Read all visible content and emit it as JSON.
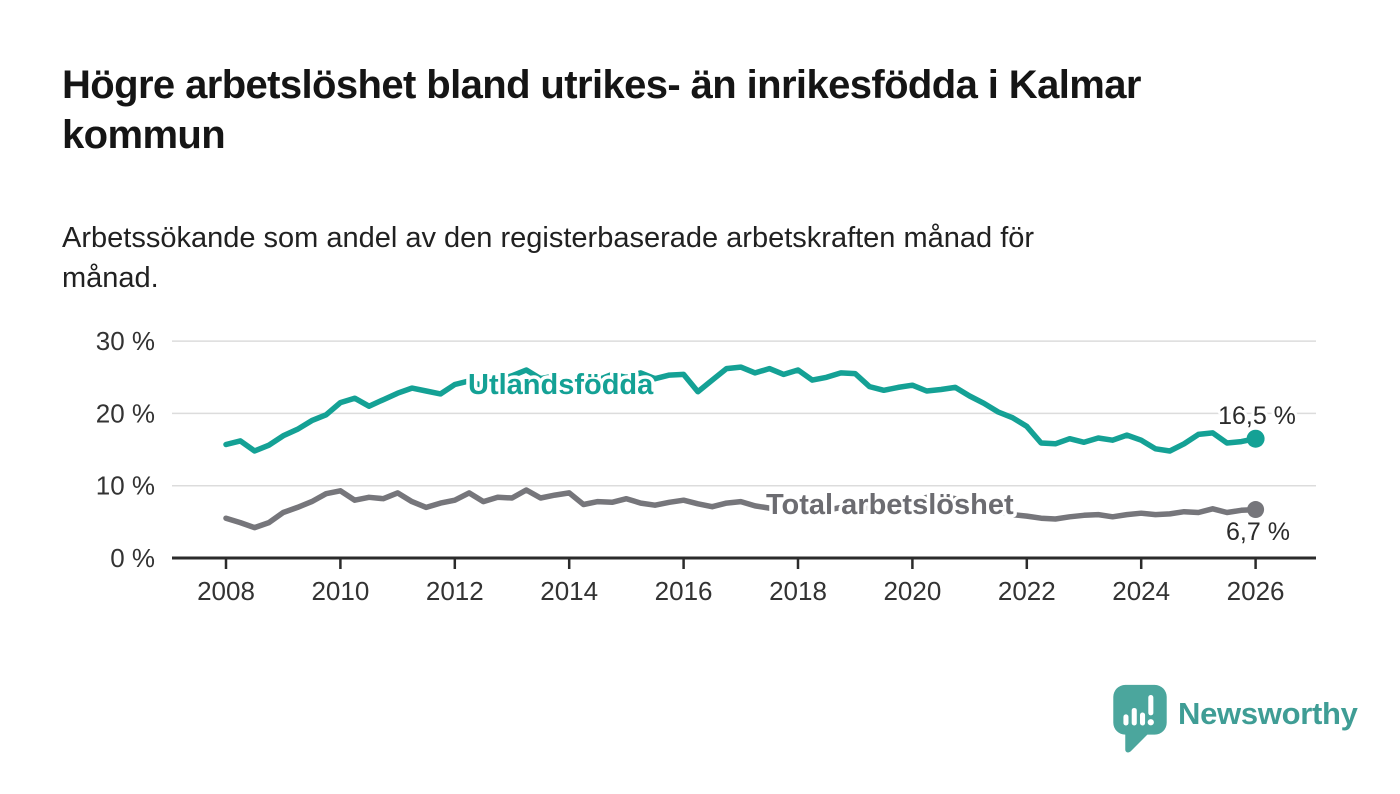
{
  "title": {
    "lines": [
      "Högre arbetslöshet bland utrikes- än inrikesfödda i Kalmar",
      "kommun"
    ]
  },
  "subtitle": {
    "lines": [
      "Arbetssökande som andel av den registerbaserade arbetskraften månad för",
      "månad."
    ]
  },
  "branding": {
    "name": "Newsworthy",
    "logo_icon": "speech-bubble-bar-chart-icon",
    "text_color": "#3f9d95",
    "bubble_color": "#4ba69d"
  },
  "chart_data": {
    "type": "line",
    "title": "Högre arbetslöshet bland utrikes- än inrikesfödda i Kalmar kommun",
    "subtitle": "Arbetssökande som andel av den registerbaserade arbetskraften månad för månad.",
    "xlabel": "",
    "ylabel": "",
    "grid": true,
    "legend": "inline-labels",
    "x_range": [
      2008,
      2026
    ],
    "y_range": [
      0,
      30
    ],
    "y_axis": {
      "unit": "%",
      "ticks": [
        {
          "value": 0,
          "label": "0 %"
        },
        {
          "value": 10,
          "label": "10 %"
        },
        {
          "value": 20,
          "label": "20 %"
        },
        {
          "value": 30,
          "label": "30 %"
        }
      ],
      "gridline_values": [
        10,
        20,
        30
      ]
    },
    "x_axis": {
      "ticks": [
        {
          "value": 2008,
          "label": "2008"
        },
        {
          "value": 2010,
          "label": "2010"
        },
        {
          "value": 2012,
          "label": "2012"
        },
        {
          "value": 2014,
          "label": "2014"
        },
        {
          "value": 2016,
          "label": "2016"
        },
        {
          "value": 2018,
          "label": "2018"
        },
        {
          "value": 2020,
          "label": "2020"
        },
        {
          "value": 2022,
          "label": "2022"
        },
        {
          "value": 2024,
          "label": "2024"
        },
        {
          "value": 2026,
          "label": "2026"
        }
      ]
    },
    "series": [
      {
        "name": "Utlandsfödda",
        "color": "#14a195",
        "label_color": "#14a195",
        "end_label": "16,5 %",
        "end_value": 16.5,
        "x_start": 2008.0,
        "x_step": 0.25,
        "values": [
          15.7,
          16.2,
          14.8,
          15.6,
          16.9,
          17.8,
          19.0,
          19.8,
          21.5,
          22.1,
          21.0,
          21.9,
          22.8,
          23.5,
          23.1,
          22.7,
          24.0,
          24.5,
          23.8,
          24.6,
          25.2,
          26.0,
          24.8,
          25.2,
          23.3,
          23.8,
          24.6,
          25.4,
          25.0,
          25.6,
          24.8,
          25.3,
          25.4,
          23.0,
          24.6,
          26.2,
          26.4,
          25.6,
          26.2,
          25.4,
          26.0,
          24.6,
          25.0,
          25.6,
          25.5,
          23.7,
          23.2,
          23.6,
          23.9,
          23.1,
          23.3,
          23.6,
          22.4,
          21.4,
          20.2,
          19.4,
          18.2,
          15.9,
          15.8,
          16.5,
          16.0,
          16.6,
          16.3,
          17.0,
          16.3,
          15.1,
          14.8,
          15.8,
          17.1,
          17.3,
          15.9,
          16.1,
          16.5
        ]
      },
      {
        "name": "Total arbetslöshet",
        "color": "#76767b",
        "label_color": "#6c6c71",
        "end_label": "6,7 %",
        "end_value": 6.7,
        "x_start": 2008.0,
        "x_step": 0.25,
        "values": [
          5.5,
          4.9,
          4.2,
          4.9,
          6.3,
          7.0,
          7.8,
          8.9,
          9.3,
          8.0,
          8.4,
          8.2,
          9.0,
          7.8,
          7.0,
          7.6,
          8.0,
          9.0,
          7.8,
          8.4,
          8.3,
          9.4,
          8.3,
          8.7,
          9.0,
          7.4,
          7.8,
          7.7,
          8.2,
          7.6,
          7.3,
          7.7,
          8.0,
          7.5,
          7.1,
          7.6,
          7.8,
          7.2,
          6.9,
          7.2,
          7.3,
          6.9,
          6.6,
          7.0,
          7.2,
          6.9,
          6.8,
          7.1,
          7.6,
          8.4,
          8.6,
          8.2,
          7.9,
          7.2,
          6.5,
          6.0,
          5.8,
          5.5,
          5.4,
          5.7,
          5.9,
          6.0,
          5.7,
          6.0,
          6.2,
          6.0,
          6.1,
          6.4,
          6.3,
          6.8,
          6.3,
          6.6,
          6.7
        ]
      }
    ],
    "colors": {
      "axis": "#2b2b2b",
      "gridline": "#dcdcdc",
      "tick_label": "#333333",
      "end_label_text": "#2b2b2b"
    }
  }
}
